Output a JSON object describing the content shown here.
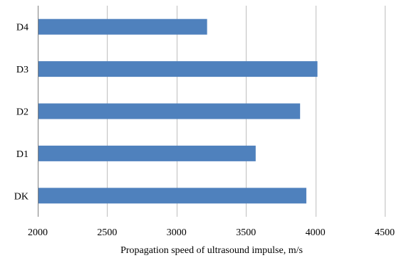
{
  "chart_data": {
    "type": "bar",
    "orientation": "horizontal",
    "categories": [
      "D4",
      "D3",
      "D2",
      "D1",
      "DK"
    ],
    "values": [
      3220,
      4015,
      3890,
      3570,
      3935
    ],
    "title": "",
    "xlabel": "Propagation speed of ultrasound impulse, m/s",
    "ylabel": "",
    "xlim": [
      2000,
      4500
    ],
    "xticks": [
      2000,
      2500,
      3000,
      3500,
      4000,
      4500
    ],
    "xtick_labels": [
      "2000",
      "2500",
      "3000",
      "3500",
      "4000",
      "4500"
    ],
    "grid": "vertical",
    "legend": "none",
    "colors": {
      "bar": "#4f81bd",
      "grid": "#bfbfbf",
      "axis": "#7f7f7f"
    }
  }
}
